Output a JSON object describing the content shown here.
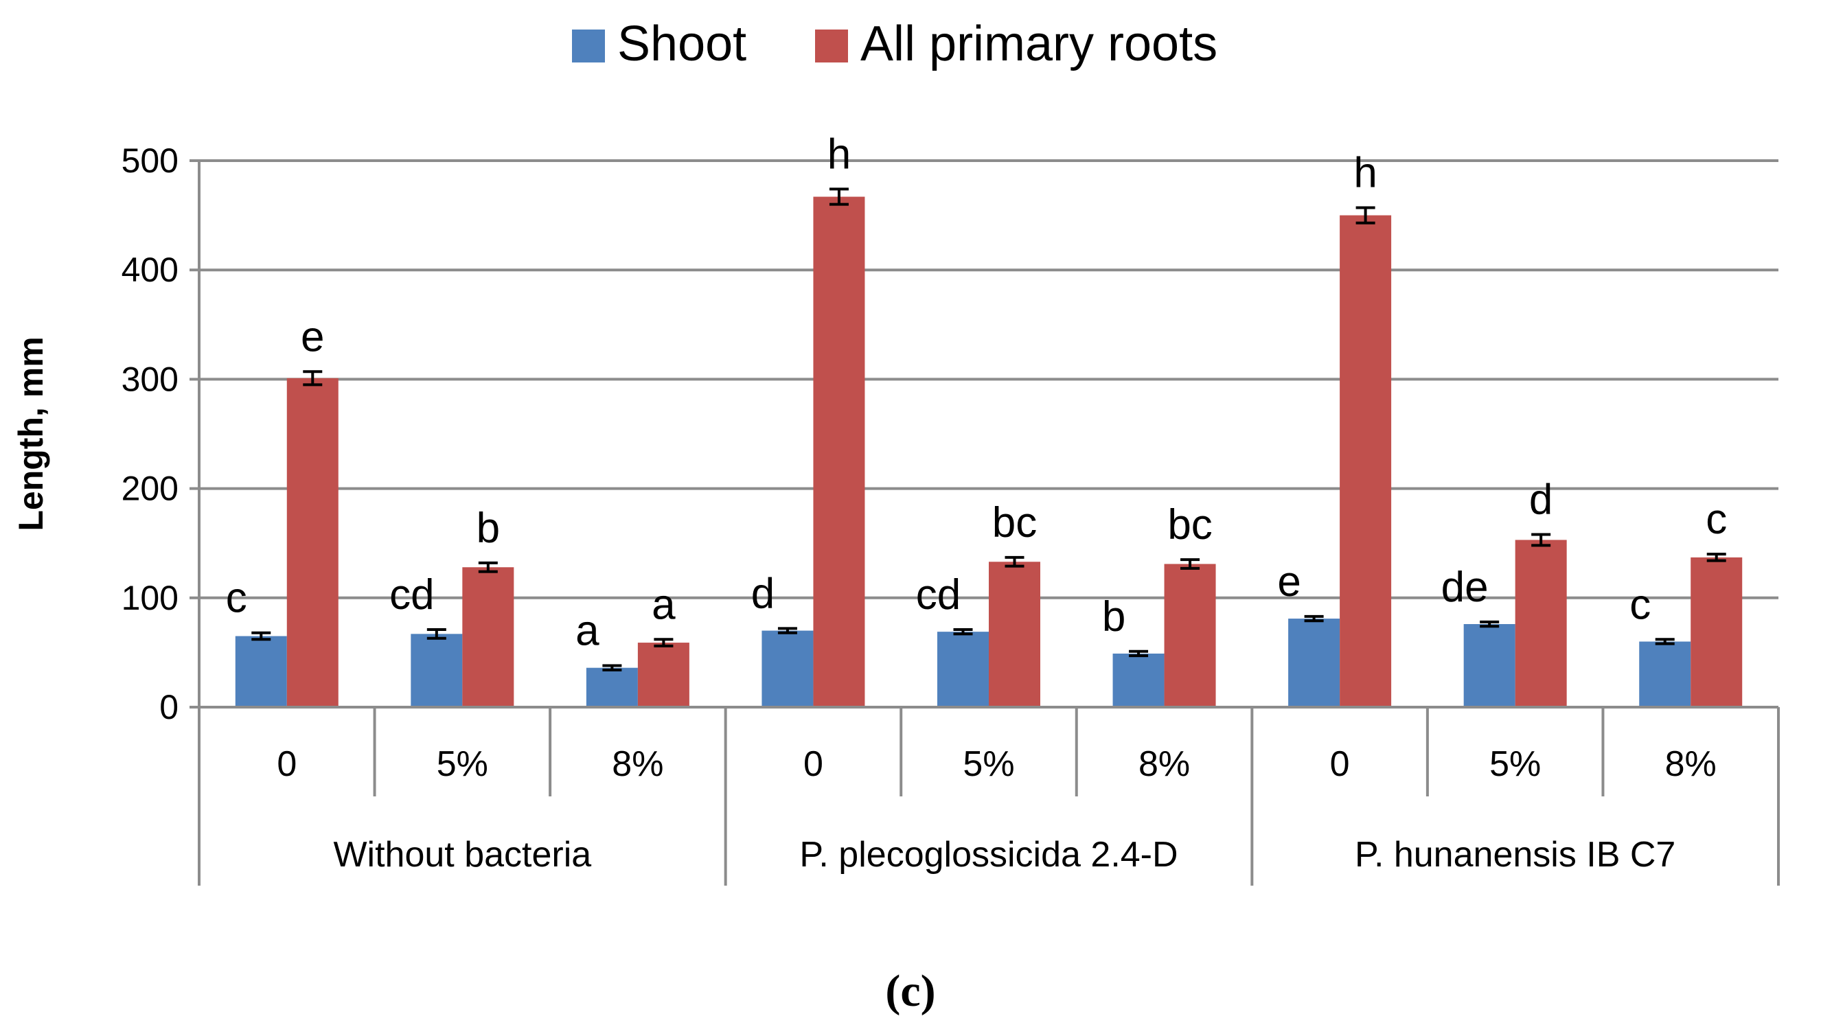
{
  "chart_data": {
    "type": "bar",
    "title": "",
    "xlabel": "",
    "ylabel": "Length, mm",
    "ylim": [
      0,
      500
    ],
    "yticks": [
      0,
      100,
      200,
      300,
      400,
      500
    ],
    "grid": true,
    "legend_position": "top-center",
    "groups": [
      {
        "label": "Without bacteria",
        "categories": [
          "0",
          "5%",
          "8%"
        ]
      },
      {
        "label": "P. plecoglossicida 2.4-D",
        "categories": [
          "0",
          "5%",
          "8%"
        ]
      },
      {
        "label": "P. hunanensis IB C7",
        "categories": [
          "0",
          "5%",
          "8%"
        ]
      }
    ],
    "categories": [
      "0",
      "5%",
      "8%",
      "0",
      "5%",
      "8%",
      "0",
      "5%",
      "8%"
    ],
    "series": [
      {
        "name": "Shoot",
        "color": "#4F81BD",
        "values": [
          65,
          67,
          36,
          70,
          69,
          49,
          81,
          76,
          60
        ],
        "errors": [
          3,
          4,
          2,
          2,
          2,
          2,
          2,
          2,
          2
        ],
        "letters": [
          "c",
          "cd",
          "a",
          "d",
          "cd",
          "b",
          "e",
          "de",
          "c"
        ]
      },
      {
        "name": "All primary roots",
        "color": "#C0504D",
        "values": [
          301,
          128,
          59,
          467,
          133,
          131,
          450,
          153,
          137
        ],
        "errors": [
          6,
          4,
          3,
          7,
          4,
          4,
          7,
          5,
          3
        ],
        "letters": [
          "e",
          "b",
          "a",
          "h",
          "bc",
          "bc",
          "h",
          "d",
          "c"
        ]
      }
    ],
    "panel_label": "(c)"
  }
}
